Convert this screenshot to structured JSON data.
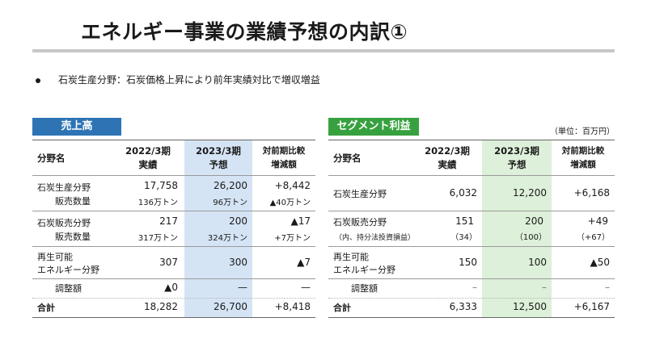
{
  "title": "エネルギー事業の業績予想の内訳①",
  "bullet": "石炭生産分野：石炭価格上昇により前年実績対比で増収増益",
  "unit": "（単位：百万円）",
  "sales": {
    "tag": "売上高",
    "headers": {
      "field": "分野名",
      "prev_1": "2022/3期",
      "prev_2": "実績",
      "fcst_1": "2023/3期",
      "fcst_2": "予想",
      "diff_1": "対前期比較",
      "diff_2": "増減額"
    },
    "rows": [
      {
        "l1": "石炭生産分野",
        "l2": "販売数量",
        "p1": "17,758",
        "p2": "136万トン",
        "f1": "26,200",
        "f2": "96万トン",
        "d1": "+8,442",
        "d2": "▲40万トン"
      },
      {
        "l1": "石炭販売分野",
        "l2": "販売数量",
        "p1": "217",
        "p2": "317万トン",
        "f1": "200",
        "f2": "324万トン",
        "d1": "▲17",
        "d2": "+7万トン"
      },
      {
        "l1": "再生可能",
        "l2": "エネルギー分野",
        "p1": "307",
        "f1": "300",
        "d1": "▲7"
      },
      {
        "l1": "調整額",
        "p1": "▲0",
        "f1": "—",
        "d1": "—"
      },
      {
        "l1": "合計",
        "p1": "18,282",
        "f1": "26,700",
        "d1": "+8,418"
      }
    ]
  },
  "profit": {
    "tag": "セグメント利益",
    "headers": {
      "field": "分野名",
      "prev_1": "2022/3期",
      "prev_2": "実績",
      "fcst_1": "2023/3期",
      "fcst_2": "予想",
      "diff_1": "対前期比較",
      "diff_2": "増減額"
    },
    "rows": [
      {
        "l1": "石炭生産分野",
        "p1": "6,032",
        "f1": "12,200",
        "d1": "+6,168"
      },
      {
        "l1": "石炭販売分野",
        "l2": "（内、持分法投資損益）",
        "p1": "151",
        "p2": "（34）",
        "f1": "200",
        "f2": "（100）",
        "d1": "+49",
        "d2": "（+67）"
      },
      {
        "l1": "再生可能",
        "l2": "エネルギー分野",
        "p1": "150",
        "f1": "100",
        "d1": "▲50"
      },
      {
        "l1": "調整額",
        "p1": "–",
        "f1": "–",
        "d1": "–"
      },
      {
        "l1": "合計",
        "p1": "6,333",
        "f1": "12,500",
        "d1": "+6,167"
      }
    ]
  }
}
